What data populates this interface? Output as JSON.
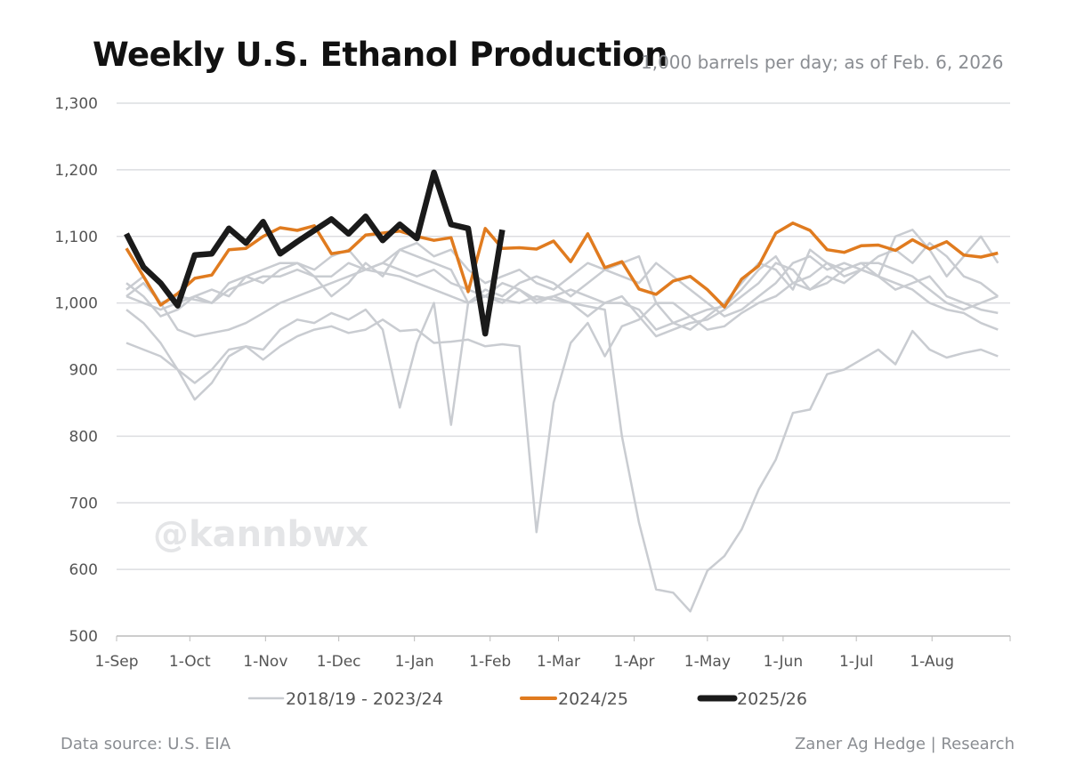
{
  "chart_data": {
    "type": "line",
    "title": "Weekly U.S. Ethanol Production",
    "subtitle": "1,000 barrels per day; as of Feb. 6, 2026",
    "ylim": [
      500,
      1300
    ],
    "y_ticks": [
      "500",
      "600",
      "700",
      "800",
      "900",
      "1,000",
      "1,100",
      "1,200",
      "1,300"
    ],
    "y_tick_values": [
      500,
      600,
      700,
      800,
      900,
      1000,
      1100,
      1200,
      1300
    ],
    "x_ticks": [
      "1-Sep",
      "1-Oct",
      "1-Nov",
      "1-Dec",
      "1-Jan",
      "1-Feb",
      "1-Mar",
      "1-Apr",
      "1-May",
      "1-Jun",
      "1-Jul",
      "1-Aug"
    ],
    "grid": true,
    "legend_position": "bottom",
    "series": [
      {
        "name": "2018/19 - 2023/24",
        "color": "#c9ccd1",
        "group": true,
        "lines": [
          [
            940,
            930,
            920,
            900,
            880,
            900,
            930,
            935,
            915,
            935,
            950,
            960,
            965,
            955,
            960,
            975,
            958,
            960,
            940,
            942,
            945,
            935,
            938,
            935,
            656,
            850,
            940,
            970,
            920,
            965,
            975,
            1000,
            1000,
            980,
            960,
            965,
            985,
            1000,
            1010,
            1030,
            1020,
            1040,
            1030,
            1050,
            1040,
            1030,
            1020,
            1000,
            990,
            985,
            970,
            960
          ],
          [
            1010,
            1030,
            1000,
            960,
            950,
            955,
            960,
            970,
            985,
            1000,
            1010,
            1020,
            1030,
            1040,
            1050,
            1045,
            1040,
            1030,
            1020,
            1010,
            1000,
            1010,
            1005,
            1000,
            1010,
            1005,
            1000,
            995,
            990,
            800,
            670,
            570,
            565,
            537,
            598,
            620,
            660,
            720,
            765,
            835,
            840,
            893,
            900,
            915,
            930,
            908,
            958,
            930,
            918,
            925,
            930,
            920
          ],
          [
            990,
            970,
            940,
            900,
            855,
            880,
            920,
            935,
            930,
            960,
            975,
            970,
            985,
            975,
            990,
            960,
            843,
            940,
            1000,
            817,
            1000,
            1010,
            1000,
            1020,
            1005,
            1010,
            1000,
            980,
            1000,
            1000,
            990,
            960,
            970,
            980,
            990,
            995,
            1020,
            1050,
            1070,
            1030,
            1040,
            1060,
            1040,
            1050,
            1040,
            1020,
            1030,
            1040,
            1010,
            1000,
            990,
            985
          ],
          [
            1020,
            1040,
            1000,
            1010,
            1005,
            1000,
            1030,
            1040,
            1050,
            1060,
            1060,
            1050,
            1070,
            1080,
            1050,
            1060,
            1080,
            1090,
            1070,
            1080,
            1050,
            1030,
            1040,
            1050,
            1030,
            1020,
            1040,
            1060,
            1050,
            1040,
            1030,
            1060,
            1040,
            1020,
            1000,
            980,
            990,
            1010,
            1030,
            1060,
            1070,
            1050,
            1060,
            1050,
            1070,
            1080,
            1060,
            1090,
            1070,
            1040,
            1030,
            1010
          ],
          [
            1030,
            1010,
            980,
            990,
            1010,
            1020,
            1010,
            1040,
            1030,
            1050,
            1060,
            1040,
            1010,
            1030,
            1060,
            1040,
            1080,
            1070,
            1060,
            1050,
            1000,
            1020,
            1010,
            1030,
            1040,
            1030,
            1010,
            1030,
            1050,
            1060,
            1070,
            1000,
            970,
            960,
            980,
            1000,
            1030,
            1060,
            1050,
            1020,
            1080,
            1060,
            1050,
            1060,
            1040,
            1100,
            1110,
            1080,
            1040,
            1070,
            1100,
            1060
          ],
          [
            1010,
            1000,
            990,
            1000,
            1010,
            1000,
            1020,
            1030,
            1040,
            1040,
            1050,
            1040,
            1040,
            1060,
            1050,
            1060,
            1050,
            1040,
            1050,
            1030,
            1020,
            1010,
            1030,
            1020,
            1000,
            1010,
            1020,
            1010,
            1000,
            1010,
            980,
            950,
            960,
            970,
            975,
            990,
            1010,
            1030,
            1060,
            1050,
            1020,
            1030,
            1050,
            1060,
            1060,
            1050,
            1040,
            1020,
            1000,
            990,
            1000,
            1010
          ]
        ]
      },
      {
        "name": "2024/25",
        "color": "#e07b1f",
        "values": [
          1082,
          1040,
          997,
          1014,
          1037,
          1042,
          1080,
          1082,
          1100,
          1113,
          1109,
          1116,
          1074,
          1078,
          1102,
          1105,
          1108,
          1100,
          1094,
          1098,
          1017,
          1112,
          1082,
          1083,
          1081,
          1093,
          1062,
          1104,
          1053,
          1062,
          1021,
          1013,
          1033,
          1040,
          1020,
          994,
          1036,
          1056,
          1105,
          1120,
          1109,
          1080,
          1076,
          1086,
          1087,
          1079,
          1095,
          1081,
          1092,
          1072,
          1069,
          1075
        ]
      },
      {
        "name": "2025/26",
        "color": "#1a1a1a",
        "values": [
          1104,
          1054,
          1030,
          996,
          1072,
          1074,
          1112,
          1090,
          1122,
          1074,
          1092,
          1109,
          1126,
          1104,
          1130,
          1094,
          1118,
          1097,
          1196,
          1118,
          1112,
          954,
          1110
        ]
      }
    ]
  },
  "watermark": "@kannbwx",
  "footer": {
    "source": "Data source: U.S. EIA",
    "credit": "Zaner Ag Hedge | Research"
  }
}
